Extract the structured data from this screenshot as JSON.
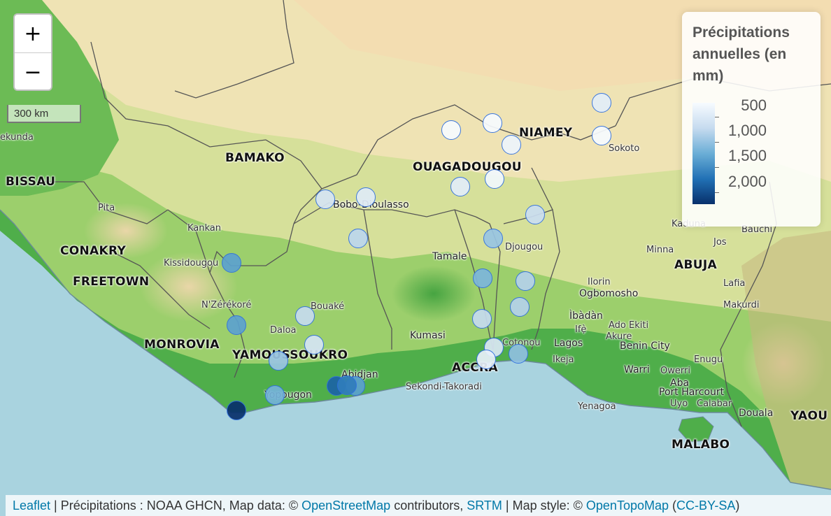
{
  "zoom": {
    "zoom_in": "+",
    "zoom_out": "−"
  },
  "scale": {
    "label": "300 km"
  },
  "legend": {
    "title": "Précipitations annuelles (en mm)",
    "labels": [
      "500",
      "1,000",
      "1,500",
      "2,000"
    ],
    "colors": [
      "#f7fbff",
      "#c6dbef",
      "#6baed6",
      "#2171b5",
      "#08306b"
    ]
  },
  "places": {
    "bamako": "BAMAKO",
    "bissau": "BISSAU",
    "conakry": "CONAKRY",
    "freetown": "FREETOWN",
    "monrovia": "MONROVIA",
    "yamoussoukro": "YAMOUSSOUKRO",
    "ouagadougou": "OUAGADOUGOU",
    "niamey": "NIAMEY",
    "accra": "ACCRA",
    "abuja": "ABUJA",
    "malabo": "MALABO",
    "yaounde": "YAOU",
    "bobo": "Bobo-Dioulasso",
    "pita": "Pita",
    "kankan": "Kankan",
    "kissidougou": "Kissidougou",
    "nzerekore": "N'Zérékoré",
    "bouake": "Bouaké",
    "daloa": "Daloa",
    "abidjan": "Abidjan",
    "yopougon": "Yopougon",
    "tamale": "Tamale",
    "kumasi": "Kumasi",
    "sekondi": "Sekondi-Takoradi",
    "djougou": "Djougou",
    "cotonou": "Cotonou",
    "lagos": "Lagos",
    "ikeja": "Ikeja",
    "ibadan": "Ìbàdàn",
    "ogbomosho": "Ogbomosho",
    "ilorin": "Ilorin",
    "ife": "Ifẹ̀",
    "ado": "Ado Ekiti",
    "akure": "Akure",
    "benin": "Benin City",
    "warri": "Warri",
    "owerri": "Owerri",
    "enugu": "Enugu",
    "aba": "Aba",
    "ph": "Port Harcourt",
    "uyo": "Uyo",
    "calabar": "Calabar",
    "yenagoa": "Yenagoa",
    "douala": "Douala",
    "kaduna": "Kaduna",
    "bauchi": "Bauchi",
    "jos": "Jos",
    "minna": "Minna",
    "lafia": "Lafia",
    "makurdi": "Makurdi",
    "sokoto": "Sokoto",
    "ekunda": "ekunda"
  },
  "stations": [
    {
      "rain": 700
    },
    {
      "rain": 450
    },
    {
      "rain": 400
    },
    {
      "rain": 600
    },
    {
      "rain": 450
    },
    {
      "rain": 550
    },
    {
      "rain": 700
    },
    {
      "rain": 750
    },
    {
      "rain": 850
    },
    {
      "rain": 950
    },
    {
      "rain": 1050
    },
    {
      "rain": 1100
    },
    {
      "rain": 1250
    },
    {
      "rain": 1400
    },
    {
      "rain": 1100
    },
    {
      "rain": 1600
    },
    {
      "rain": 1600
    },
    {
      "rain": 1000
    },
    {
      "rain": 850
    },
    {
      "rain": 1250
    },
    {
      "rain": 1000
    },
    {
      "rain": 1300
    },
    {
      "rain": 800
    },
    {
      "rain": 650
    },
    {
      "rain": 1450
    },
    {
      "rain": 1600
    },
    {
      "rain": 2100
    },
    {
      "rain": 1900
    },
    {
      "rain": 2700
    }
  ],
  "attribution": {
    "leaflet": "Leaflet",
    "sep1": " | Précipitations : NOAA GHCN, Map data: © ",
    "osm": "OpenStreetMap",
    "sep2": " contributors, ",
    "srtm": "SRTM",
    "sep3": " | Map style: © ",
    "otm": "OpenTopoMap",
    "sep4": " (",
    "license": "CC-BY-SA",
    "sep5": ")"
  }
}
